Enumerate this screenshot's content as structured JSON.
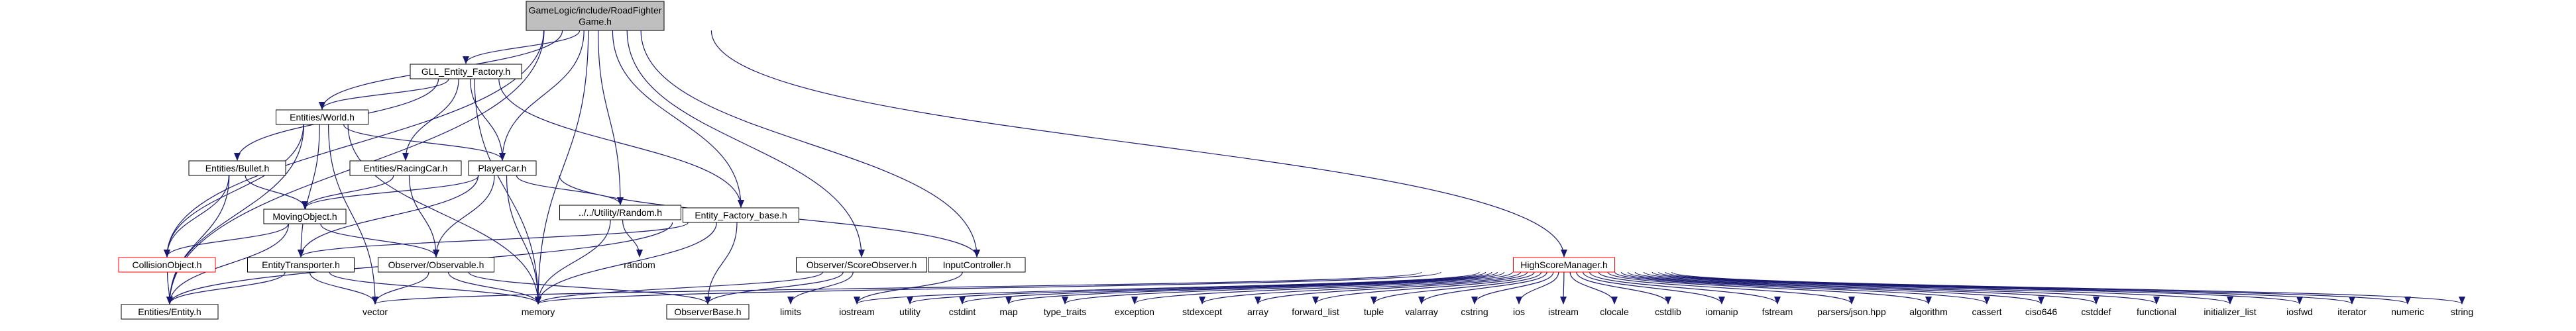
{
  "graph": {
    "nodes": [
      {
        "id": "root",
        "label_lines": [
          "GameLogic/include/RoadFighter",
          "Game.h"
        ],
        "style": "root"
      },
      {
        "id": "gll_factory",
        "label_lines": [
          "GLL_Entity_Factory.h"
        ],
        "style": "box"
      },
      {
        "id": "world",
        "label_lines": [
          "Entities/World.h"
        ],
        "style": "box"
      },
      {
        "id": "bullet",
        "label_lines": [
          "Entities/Bullet.h"
        ],
        "style": "box"
      },
      {
        "id": "racingcar",
        "label_lines": [
          "Entities/RacingCar.h"
        ],
        "style": "box"
      },
      {
        "id": "playercar",
        "label_lines": [
          "PlayerCar.h"
        ],
        "style": "box"
      },
      {
        "id": "random_h",
        "label_lines": [
          "../../Utility/Random.h"
        ],
        "style": "box"
      },
      {
        "id": "movingobject",
        "label_lines": [
          "MovingObject.h"
        ],
        "style": "box"
      },
      {
        "id": "entity_factory_base",
        "label_lines": [
          "Entity_Factory_base.h"
        ],
        "style": "box"
      },
      {
        "id": "collisionobject",
        "label_lines": [
          "CollisionObject.h"
        ],
        "style": "incomplete"
      },
      {
        "id": "entitytransporter",
        "label_lines": [
          "EntityTransporter.h"
        ],
        "style": "box"
      },
      {
        "id": "observable",
        "label_lines": [
          "Observer/Observable.h"
        ],
        "style": "box"
      },
      {
        "id": "scoreobserver",
        "label_lines": [
          "Observer/ScoreObserver.h"
        ],
        "style": "box"
      },
      {
        "id": "inputcontroller",
        "label_lines": [
          "InputController.h"
        ],
        "style": "box"
      },
      {
        "id": "highscoremanager",
        "label_lines": [
          "HighScoreManager.h"
        ],
        "style": "incomplete"
      },
      {
        "id": "entity_h",
        "label_lines": [
          "Entities/Entity.h"
        ],
        "style": "box"
      },
      {
        "id": "observerbase",
        "label_lines": [
          "ObserverBase.h"
        ],
        "style": "box"
      },
      {
        "id": "std_random",
        "label_lines": [
          "random"
        ],
        "style": "text"
      },
      {
        "id": "std_vector",
        "label_lines": [
          "vector"
        ],
        "style": "text"
      },
      {
        "id": "std_memory",
        "label_lines": [
          "memory"
        ],
        "style": "text"
      },
      {
        "id": "std_limits",
        "label_lines": [
          "limits"
        ],
        "style": "text"
      },
      {
        "id": "std_iostream",
        "label_lines": [
          "iostream"
        ],
        "style": "text"
      },
      {
        "id": "std_utility",
        "label_lines": [
          "utility"
        ],
        "style": "text"
      },
      {
        "id": "std_cstdint",
        "label_lines": [
          "cstdint"
        ],
        "style": "text"
      },
      {
        "id": "std_map",
        "label_lines": [
          "map"
        ],
        "style": "text"
      },
      {
        "id": "std_type_traits",
        "label_lines": [
          "type_traits"
        ],
        "style": "text"
      },
      {
        "id": "std_exception",
        "label_lines": [
          "exception"
        ],
        "style": "text"
      },
      {
        "id": "std_stdexcept",
        "label_lines": [
          "stdexcept"
        ],
        "style": "text"
      },
      {
        "id": "std_array",
        "label_lines": [
          "array"
        ],
        "style": "text"
      },
      {
        "id": "std_forward_list",
        "label_lines": [
          "forward_list"
        ],
        "style": "text"
      },
      {
        "id": "std_tuple",
        "label_lines": [
          "tuple"
        ],
        "style": "text"
      },
      {
        "id": "std_valarray",
        "label_lines": [
          "valarray"
        ],
        "style": "text"
      },
      {
        "id": "std_cstring",
        "label_lines": [
          "cstring"
        ],
        "style": "text"
      },
      {
        "id": "std_ios",
        "label_lines": [
          "ios"
        ],
        "style": "text"
      },
      {
        "id": "std_istream",
        "label_lines": [
          "istream"
        ],
        "style": "text"
      },
      {
        "id": "std_clocale",
        "label_lines": [
          "clocale"
        ],
        "style": "text"
      },
      {
        "id": "std_cstdlib",
        "label_lines": [
          "cstdlib"
        ],
        "style": "text"
      },
      {
        "id": "std_iomanip",
        "label_lines": [
          "iomanip"
        ],
        "style": "text"
      },
      {
        "id": "std_fstream",
        "label_lines": [
          "fstream"
        ],
        "style": "text"
      },
      {
        "id": "std_json",
        "label_lines": [
          "parsers/json.hpp"
        ],
        "style": "text"
      },
      {
        "id": "std_algorithm",
        "label_lines": [
          "algorithm"
        ],
        "style": "text"
      },
      {
        "id": "std_cassert",
        "label_lines": [
          "cassert"
        ],
        "style": "text"
      },
      {
        "id": "std_ciso646",
        "label_lines": [
          "ciso646"
        ],
        "style": "text"
      },
      {
        "id": "std_cstddef",
        "label_lines": [
          "cstddef"
        ],
        "style": "text"
      },
      {
        "id": "std_functional",
        "label_lines": [
          "functional"
        ],
        "style": "text"
      },
      {
        "id": "std_initializer_list",
        "label_lines": [
          "initializer_list"
        ],
        "style": "text"
      },
      {
        "id": "std_iosfwd",
        "label_lines": [
          "iosfwd"
        ],
        "style": "text"
      },
      {
        "id": "std_iterator",
        "label_lines": [
          "iterator"
        ],
        "style": "text"
      },
      {
        "id": "std_numeric",
        "label_lines": [
          "numeric"
        ],
        "style": "text"
      },
      {
        "id": "std_string",
        "label_lines": [
          "string"
        ],
        "style": "text"
      }
    ],
    "edges": [
      [
        "root",
        "world"
      ],
      [
        "root",
        "gll_factory"
      ],
      [
        "root",
        "playercar"
      ],
      [
        "root",
        "random_h"
      ],
      [
        "root",
        "entity_factory_base"
      ],
      [
        "root",
        "collisionobject"
      ],
      [
        "root",
        "entity_h"
      ],
      [
        "root",
        "std_memory"
      ],
      [
        "root",
        "scoreobserver"
      ],
      [
        "root",
        "inputcontroller"
      ],
      [
        "root",
        "highscoremanager"
      ],
      [
        "gll_factory",
        "world"
      ],
      [
        "gll_factory",
        "bullet"
      ],
      [
        "gll_factory",
        "racingcar"
      ],
      [
        "gll_factory",
        "playercar"
      ],
      [
        "gll_factory",
        "entity_factory_base"
      ],
      [
        "gll_factory",
        "std_memory"
      ],
      [
        "world",
        "playercar"
      ],
      [
        "world",
        "collisionobject"
      ],
      [
        "world",
        "entitytransporter"
      ],
      [
        "world",
        "entity_h"
      ],
      [
        "world",
        "std_memory"
      ],
      [
        "world",
        "std_vector"
      ],
      [
        "bullet",
        "movingobject"
      ],
      [
        "bullet",
        "collisionobject"
      ],
      [
        "bullet",
        "entity_h"
      ],
      [
        "racingcar",
        "movingobject"
      ],
      [
        "racingcar",
        "observable"
      ],
      [
        "playercar",
        "movingobject"
      ],
      [
        "playercar",
        "random_h"
      ],
      [
        "playercar",
        "entitytransporter"
      ],
      [
        "playercar",
        "observable"
      ],
      [
        "playercar",
        "inputcontroller"
      ],
      [
        "playercar",
        "std_memory"
      ],
      [
        "random_h",
        "std_random"
      ],
      [
        "random_h",
        "std_memory"
      ],
      [
        "movingobject",
        "collisionobject"
      ],
      [
        "movingobject",
        "entity_h"
      ],
      [
        "movingobject",
        "observable"
      ],
      [
        "entity_factory_base",
        "entitytransporter"
      ],
      [
        "entity_factory_base",
        "std_memory"
      ],
      [
        "entity_factory_base",
        "entity_h"
      ],
      [
        "entity_factory_base",
        "observerbase"
      ],
      [
        "collisionobject",
        "entity_h"
      ],
      [
        "entitytransporter",
        "entity_h"
      ],
      [
        "entitytransporter",
        "std_memory"
      ],
      [
        "entitytransporter",
        "std_vector"
      ],
      [
        "observable",
        "std_vector"
      ],
      [
        "observable",
        "std_memory"
      ],
      [
        "observable",
        "observerbase"
      ],
      [
        "scoreobserver",
        "observerbase"
      ],
      [
        "scoreobserver",
        "std_memory"
      ],
      [
        "scoreobserver",
        "std_limits"
      ],
      [
        "inputcontroller",
        "std_iostream"
      ],
      [
        "highscoremanager",
        "std_vector"
      ],
      [
        "highscoremanager",
        "std_memory"
      ],
      [
        "highscoremanager",
        "std_iostream"
      ],
      [
        "highscoremanager",
        "std_utility"
      ],
      [
        "highscoremanager",
        "std_cstdint"
      ],
      [
        "highscoremanager",
        "std_map"
      ],
      [
        "highscoremanager",
        "std_type_traits"
      ],
      [
        "highscoremanager",
        "std_exception"
      ],
      [
        "highscoremanager",
        "std_stdexcept"
      ],
      [
        "highscoremanager",
        "std_array"
      ],
      [
        "highscoremanager",
        "std_forward_list"
      ],
      [
        "highscoremanager",
        "std_tuple"
      ],
      [
        "highscoremanager",
        "std_valarray"
      ],
      [
        "highscoremanager",
        "std_cstring"
      ],
      [
        "highscoremanager",
        "std_ios"
      ],
      [
        "highscoremanager",
        "std_istream"
      ],
      [
        "highscoremanager",
        "std_clocale"
      ],
      [
        "highscoremanager",
        "std_cstdlib"
      ],
      [
        "highscoremanager",
        "std_iomanip"
      ],
      [
        "highscoremanager",
        "std_fstream"
      ],
      [
        "highscoremanager",
        "std_json"
      ],
      [
        "highscoremanager",
        "std_algorithm"
      ],
      [
        "highscoremanager",
        "std_cassert"
      ],
      [
        "highscoremanager",
        "std_ciso646"
      ],
      [
        "highscoremanager",
        "std_cstddef"
      ],
      [
        "highscoremanager",
        "std_functional"
      ],
      [
        "highscoremanager",
        "std_initializer_list"
      ],
      [
        "highscoremanager",
        "std_iosfwd"
      ],
      [
        "highscoremanager",
        "std_iterator"
      ],
      [
        "highscoremanager",
        "std_numeric"
      ],
      [
        "highscoremanager",
        "std_string"
      ]
    ]
  }
}
